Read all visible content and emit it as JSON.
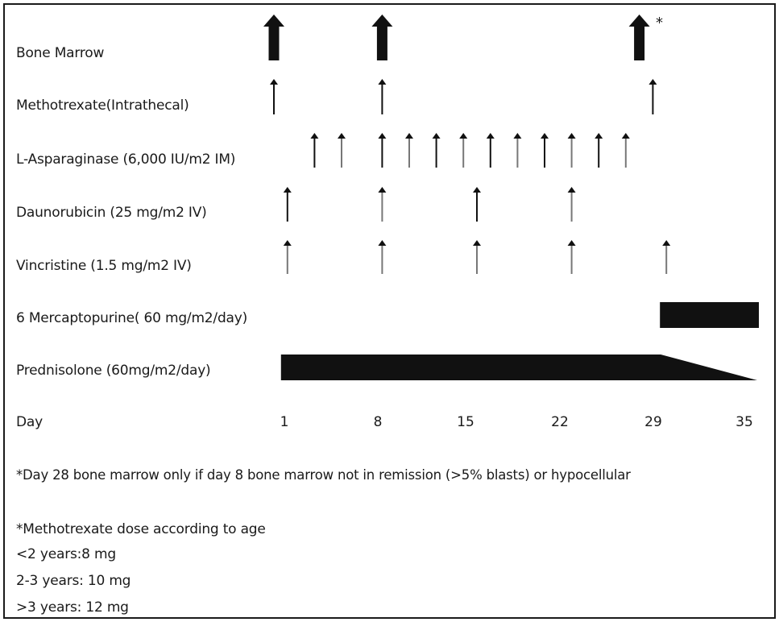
{
  "rows": {
    "bone_marrow": "Bone Marrow",
    "methotrexate": "Methotrexate(Intrathecal)",
    "asparaginase": "L-Asparaginase (6,000 IU/m2 IM)",
    "daunorubicin": "Daunorubicin (25 mg/m2 IV)",
    "vincristine": "Vincristine (1.5 mg/m2 IV)",
    "mercaptopurine": "6 Mercaptopurine( 60 mg/m2/day)",
    "prednisolone": "Prednisolone (60mg/m2/day)"
  },
  "day_axis": {
    "label": "Day",
    "ticks": [
      "1",
      "8",
      "15",
      "22",
      "29",
      "35"
    ]
  },
  "doses": {
    "bone_marrow": [
      1,
      9,
      28
    ],
    "methotrexate": [
      1,
      9,
      29
    ],
    "asparaginase": [
      4,
      6,
      9,
      11,
      13,
      15,
      17,
      19,
      21,
      23,
      25,
      27
    ],
    "daunorubicin": [
      2,
      9,
      16,
      23
    ],
    "vincristine": [
      2,
      9,
      16,
      23,
      30
    ]
  },
  "continuous": {
    "mercaptopurine": {
      "start_day": 30,
      "end_day": 36
    },
    "prednisolone": {
      "start_day": 2,
      "full_until_day": 30,
      "taper_end_day": 36
    }
  },
  "notes": {
    "bone_marrow_asterisk": "*",
    "note1": "*Day 28 bone marrow only if day 8 bone marrow not in remission (>5% blasts) or hypocellular",
    "note2": "*Methotrexate dose according to age",
    "age1": "<2 years:8 mg",
    "age2": "2-3 years: 10 mg",
    "age3": ">3 years: 12 mg"
  }
}
